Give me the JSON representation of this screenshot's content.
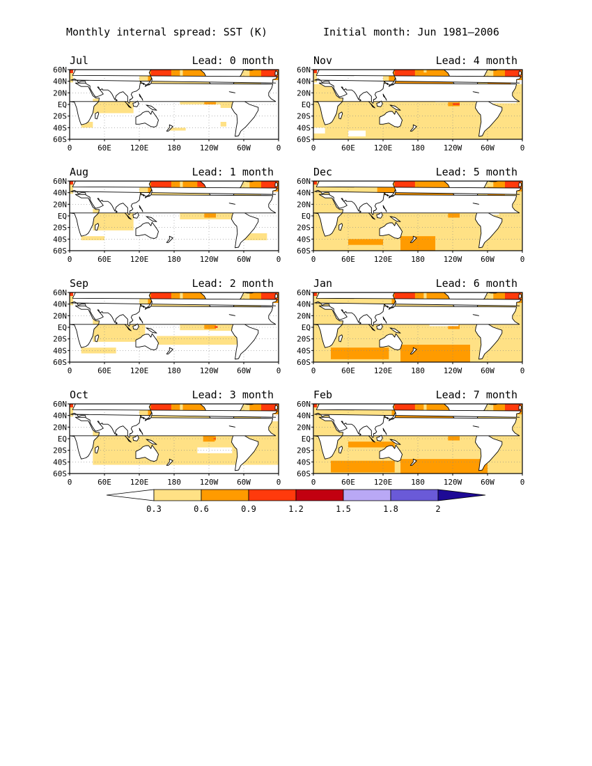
{
  "header": {
    "title_left": "Monthly internal spread: SST (K)",
    "title_right": "Initial month: Jun 1981–2006"
  },
  "lat_ticks": [
    "60N",
    "40N",
    "20N",
    "EQ",
    "20S",
    "40S",
    "60S"
  ],
  "lon_ticks": [
    "0",
    "60E",
    "120E",
    "180",
    "120W",
    "60W",
    "0"
  ],
  "panels": [
    {
      "month": "Jul",
      "lead": "Lead: 0 month",
      "level": 0
    },
    {
      "month": "Nov",
      "lead": "Lead: 4 month",
      "level": 4
    },
    {
      "month": "Aug",
      "lead": "Lead: 1 month",
      "level": 1
    },
    {
      "month": "Dec",
      "lead": "Lead: 5 month",
      "level": 5
    },
    {
      "month": "Sep",
      "lead": "Lead: 2 month",
      "level": 2
    },
    {
      "month": "Jan",
      "lead": "Lead: 6 month",
      "level": 6
    },
    {
      "month": "Oct",
      "lead": "Lead: 3 month",
      "level": 3
    },
    {
      "month": "Feb",
      "lead": "Lead: 7 month",
      "level": 7
    }
  ],
  "colorbar": {
    "boundaries": [
      "0.3",
      "0.6",
      "0.9",
      "1.2",
      "1.5",
      "1.8",
      "2"
    ],
    "colors": [
      "#ffffff",
      "#ffe185",
      "#ff9b00",
      "#ff3a0c",
      "#c20010",
      "#b9a8f5",
      "#6a5ad8",
      "#1e0a96"
    ]
  },
  "colors": {
    "land": "#ffffff",
    "low": "#ffe185",
    "mid": "#ff9b00",
    "high": "#ff3a0c",
    "vhigh": "#c20010"
  }
}
